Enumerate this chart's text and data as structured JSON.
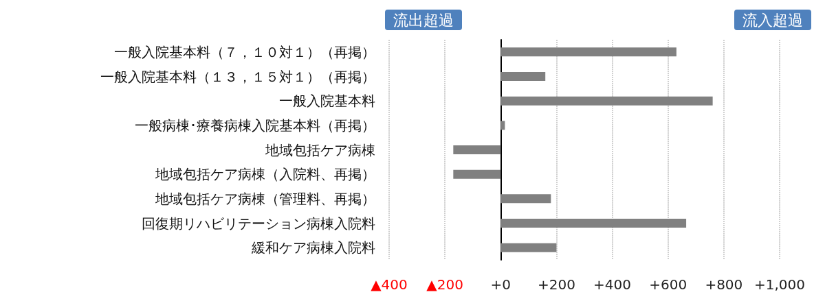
{
  "chart_data": {
    "type": "bar",
    "orientation": "horizontal",
    "categories": [
      "一般入院基本料（７，１０対１）（再掲）",
      "一般入院基本料（１３，１５対１）（再掲）",
      "一般入院基本料",
      "一般病棟･療養病棟入院基本料（再掲）",
      "地域包括ケア病棟",
      "地域包括ケア病棟（入院料、再掲）",
      "地域包括ケア病棟（管理料、再掲）",
      "回復期リハビリテーション病棟入院料",
      "緩和ケア病棟入院料"
    ],
    "values": [
      630,
      160,
      760,
      15,
      -170,
      -170,
      180,
      665,
      200
    ],
    "color": "#808080",
    "xlim": [
      -400,
      1000
    ],
    "xticks": [
      {
        "value": -400,
        "label": "▲400"
      },
      {
        "value": -200,
        "label": "▲200"
      },
      {
        "value": 0,
        "label": "+0"
      },
      {
        "value": 200,
        "label": "+200"
      },
      {
        "value": 400,
        "label": "+400"
      },
      {
        "value": 600,
        "label": "+600"
      },
      {
        "value": 800,
        "label": "+800"
      },
      {
        "value": 1000,
        "label": "+1,000"
      }
    ],
    "grid": "x",
    "annotations": [
      "流出超過",
      "流入超過"
    ]
  }
}
